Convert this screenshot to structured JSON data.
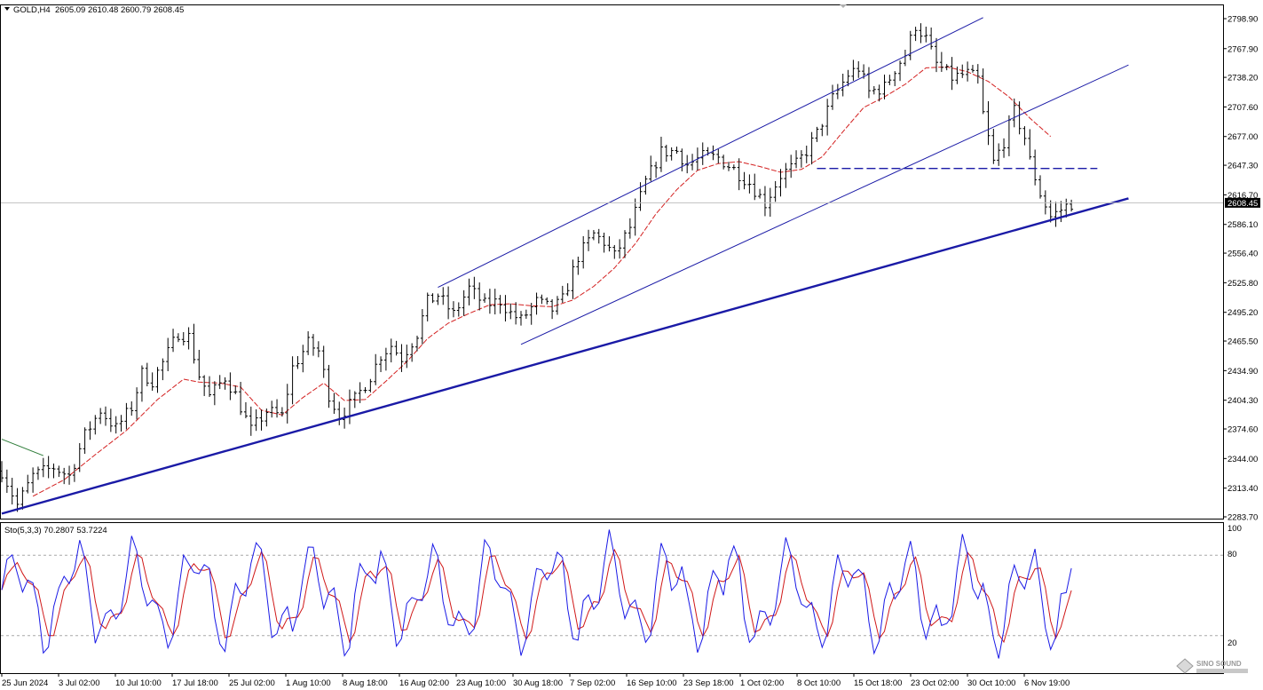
{
  "header": {
    "symbol": "GOLD,H4",
    "ohlc": "2605.09 2610.48 2600.79 2608.45"
  },
  "oscillator": {
    "label": "Sto(5,3,3) 70.2807 53.7224",
    "levels": [
      "100",
      "80",
      "20"
    ]
  },
  "watermark": {
    "text": "SINO SOUND"
  },
  "colors": {
    "candle": "#000000",
    "ma": "#d32020",
    "trendline": "#1a1aa6",
    "sto_main": "#1a1ae6",
    "sto_signal": "#d01818",
    "current_price_box": "#000000"
  },
  "chart_data": {
    "type": "candlestick",
    "symbol": "GOLD",
    "timeframe": "H4",
    "y_ticks": [
      "2798.90",
      "2767.90",
      "2738.20",
      "2707.60",
      "2677.00",
      "2647.30",
      "2616.70",
      "2586.10",
      "2556.40",
      "2525.80",
      "2495.20",
      "2465.50",
      "2434.90",
      "2404.30",
      "2374.60",
      "2344.00",
      "2313.40",
      "2283.70"
    ],
    "current_price": "2608.45",
    "x_ticks": [
      "25 Jun 2024",
      "3 Jul 02:00",
      "10 Jul 10:00",
      "17 Jul 18:00",
      "25 Jul 02:00",
      "1 Aug 10:00",
      "8 Aug 18:00",
      "16 Aug 02:00",
      "23 Aug 10:00",
      "30 Aug 18:00",
      "7 Sep 02:00",
      "16 Sep 10:00",
      "23 Sep 18:00",
      "1 Oct 02:00",
      "8 Oct 10:00",
      "15 Oct 18:00",
      "23 Oct 02:00",
      "30 Oct 10:00",
      "6 Nov 19:00"
    ],
    "ylim": [
      2283.7,
      2798.9
    ],
    "price_path": [
      [
        0,
        2331
      ],
      [
        3,
        2296
      ],
      [
        6,
        2326
      ],
      [
        10,
        2335
      ],
      [
        13,
        2326
      ],
      [
        16,
        2368
      ],
      [
        19,
        2394
      ],
      [
        22,
        2375
      ],
      [
        25,
        2397
      ],
      [
        27,
        2432
      ],
      [
        29,
        2424
      ],
      [
        31,
        2443
      ],
      [
        34,
        2474
      ],
      [
        36,
        2470
      ],
      [
        38,
        2430
      ],
      [
        40,
        2408
      ],
      [
        43,
        2428
      ],
      [
        45,
        2410
      ],
      [
        48,
        2373
      ],
      [
        51,
        2393
      ],
      [
        54,
        2388
      ],
      [
        56,
        2438
      ],
      [
        59,
        2463
      ],
      [
        61,
        2455
      ],
      [
        63,
        2410
      ],
      [
        65,
        2388
      ],
      [
        68,
        2405
      ],
      [
        71,
        2429
      ],
      [
        73,
        2451
      ],
      [
        75,
        2461
      ],
      [
        77,
        2448
      ],
      [
        80,
        2473
      ],
      [
        82,
        2506
      ],
      [
        84,
        2513
      ],
      [
        87,
        2493
      ],
      [
        90,
        2520
      ],
      [
        93,
        2503
      ],
      [
        96,
        2507
      ],
      [
        98,
        2494
      ],
      [
        100,
        2487
      ],
      [
        103,
        2506
      ],
      [
        106,
        2498
      ],
      [
        108,
        2508
      ],
      [
        111,
        2553
      ],
      [
        114,
        2576
      ],
      [
        116,
        2568
      ],
      [
        118,
        2553
      ],
      [
        121,
        2583
      ],
      [
        124,
        2630
      ],
      [
        127,
        2661
      ],
      [
        130,
        2662
      ],
      [
        132,
        2648
      ],
      [
        135,
        2656
      ],
      [
        138,
        2655
      ],
      [
        141,
        2643
      ],
      [
        144,
        2629
      ],
      [
        147,
        2608
      ],
      [
        150,
        2637
      ],
      [
        153,
        2648
      ],
      [
        155,
        2662
      ],
      [
        157,
        2680
      ],
      [
        160,
        2716
      ],
      [
        163,
        2741
      ],
      [
        165,
        2748
      ],
      [
        167,
        2723
      ],
      [
        170,
        2728
      ],
      [
        172,
        2747
      ],
      [
        174,
        2762
      ],
      [
        176,
        2792
      ],
      [
        178,
        2778
      ],
      [
        180,
        2752
      ],
      [
        183,
        2738
      ],
      [
        186,
        2742
      ],
      [
        188,
        2736
      ],
      [
        189,
        2700
      ],
      [
        191,
        2650
      ],
      [
        193,
        2672
      ],
      [
        195,
        2703
      ],
      [
        197,
        2676
      ],
      [
        198,
        2652
      ],
      [
        200,
        2618
      ],
      [
        202,
        2594
      ],
      [
        205,
        2605
      ],
      [
        206,
        2608
      ]
    ],
    "ma_path": [
      [
        6,
        2305
      ],
      [
        12,
        2322
      ],
      [
        18,
        2348
      ],
      [
        24,
        2373
      ],
      [
        30,
        2405
      ],
      [
        35,
        2426
      ],
      [
        38,
        2423
      ],
      [
        42,
        2422
      ],
      [
        46,
        2418
      ],
      [
        50,
        2394
      ],
      [
        54,
        2389
      ],
      [
        58,
        2407
      ],
      [
        62,
        2422
      ],
      [
        66,
        2404
      ],
      [
        70,
        2405
      ],
      [
        74,
        2424
      ],
      [
        78,
        2444
      ],
      [
        82,
        2468
      ],
      [
        86,
        2484
      ],
      [
        90,
        2494
      ],
      [
        94,
        2503
      ],
      [
        98,
        2504
      ],
      [
        102,
        2502
      ],
      [
        106,
        2501
      ],
      [
        110,
        2508
      ],
      [
        114,
        2522
      ],
      [
        118,
        2541
      ],
      [
        122,
        2566
      ],
      [
        126,
        2597
      ],
      [
        130,
        2622
      ],
      [
        134,
        2642
      ],
      [
        138,
        2649
      ],
      [
        142,
        2651
      ],
      [
        146,
        2646
      ],
      [
        150,
        2640
      ],
      [
        154,
        2643
      ],
      [
        158,
        2656
      ],
      [
        162,
        2682
      ],
      [
        166,
        2707
      ],
      [
        170,
        2718
      ],
      [
        174,
        2731
      ],
      [
        178,
        2748
      ],
      [
        182,
        2749
      ],
      [
        186,
        2744
      ],
      [
        190,
        2734
      ],
      [
        194,
        2718
      ],
      [
        198,
        2696
      ],
      [
        202,
        2677
      ]
    ],
    "trendlines": [
      {
        "from": [
          0,
          2287
        ],
        "to": [
          217,
          2613
        ],
        "weight": "thick"
      },
      {
        "from": [
          84,
          2521
        ],
        "to": [
          189,
          2800
        ],
        "weight": "thin"
      },
      {
        "from": [
          100,
          2462
        ],
        "to": [
          217,
          2751
        ],
        "weight": "thin"
      },
      {
        "from": [
          157,
          2644
        ],
        "to": [
          211,
          2644
        ],
        "dash": true
      },
      {
        "from": [
          0,
          2364
        ],
        "to": [
          8,
          2347
        ],
        "weight": "thin",
        "color": "#2f7d3a"
      }
    ],
    "stochastic": {
      "params": "(5,3,3)",
      "k_last": 70.2807,
      "d_last": 53.7224,
      "ylim": [
        0,
        100
      ],
      "levels": [
        80,
        20
      ]
    }
  }
}
